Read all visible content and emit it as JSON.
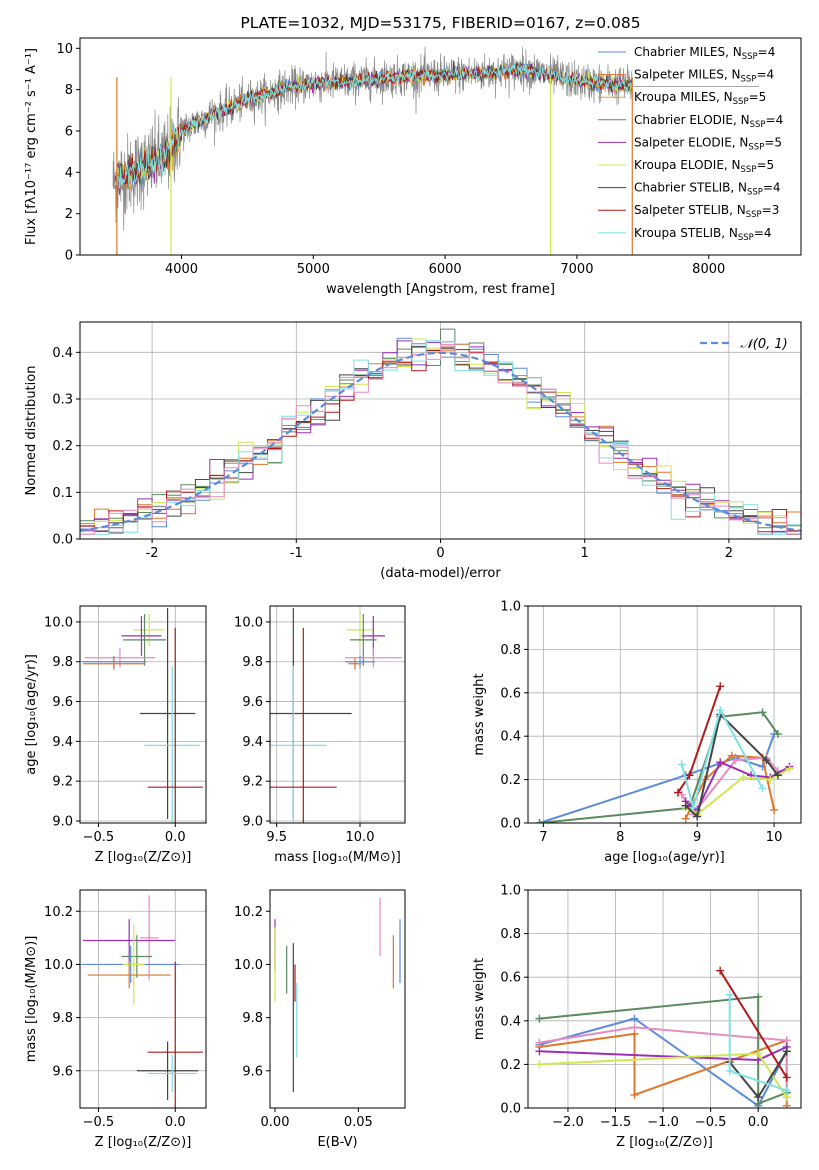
{
  "palette": [
    "#5b8bd9",
    "#e0762a",
    "#1f8c3a",
    "#9b2fb5",
    "#cfe84f",
    "#444444",
    "#b01b1b",
    "#7fe0e3",
    "#e58cc0",
    "#5a8a5f",
    "#888888"
  ],
  "chart_data": [
    {
      "id": "spectrum",
      "type": "line",
      "title": "PLATE=1032, MJD=53175, FIBERID=0167, z=0.085",
      "xlabel": "wavelength [Angstrom, rest frame]",
      "ylabel": "Flux [fλ10⁻¹⁷ erg cm⁻² s⁻¹ A⁻¹]",
      "xlim": [
        3230,
        8700
      ],
      "ylim": [
        0,
        10.5
      ],
      "xticks": [
        4000,
        5000,
        6000,
        7000,
        8000
      ],
      "yticks": [
        0,
        2,
        4,
        6,
        8,
        10
      ],
      "legend_position": "right",
      "data_color": "#888888",
      "data_label": "",
      "continuum_x": [
        3500,
        3700,
        3900,
        4000,
        4200,
        4500,
        4800,
        5000,
        5300,
        5600,
        6000,
        6300,
        6600,
        6800,
        7000,
        7200,
        7400
      ],
      "continuum_y": [
        3.6,
        4.2,
        4.9,
        6.0,
        6.7,
        7.5,
        8.1,
        8.3,
        8.4,
        8.6,
        8.7,
        8.8,
        9.0,
        8.7,
        8.4,
        8.3,
        8.2
      ],
      "model_x_range": [
        3500,
        7420
      ],
      "data_x_range": [
        3480,
        8380
      ],
      "series": [
        {
          "name": "Chabrier MILES, N_SSP=4",
          "label_main": "Chabrier MILES, N",
          "label_sub": "SSP",
          "label_end": "=4",
          "color": "#5b8bd9"
        },
        {
          "name": "Salpeter MILES, N_SSP=4",
          "label_main": "Salpeter MILES, N",
          "label_sub": "SSP",
          "label_end": "=4",
          "color": "#e0762a"
        },
        {
          "name": "Kroupa MILES, N_SSP=5",
          "label_main": "Kroupa MILES, N",
          "label_sub": "SSP",
          "label_end": "=5",
          "color": "#e0a040"
        },
        {
          "name": "Chabrier ELODIE, N_SSP=4",
          "label_main": "Chabrier ELODIE, N",
          "label_sub": "SSP",
          "label_end": "=4",
          "color": "#5a8a5f"
        },
        {
          "name": "Salpeter ELODIE, N_SSP=5",
          "label_main": "Salpeter ELODIE, N",
          "label_sub": "SSP",
          "label_end": "=5",
          "color": "#9b2fb5"
        },
        {
          "name": "Kroupa ELODIE, N_SSP=5",
          "label_main": "Kroupa ELODIE, N",
          "label_sub": "SSP",
          "label_end": "=5",
          "color": "#cfe84f"
        },
        {
          "name": "Chabrier STELIB, N_SSP=4",
          "label_main": "Chabrier STELIB, N",
          "label_sub": "SSP",
          "label_end": "=4",
          "color": "#444444"
        },
        {
          "name": "Salpeter STELIB, N_SSP=3",
          "label_main": "Salpeter STELIB, N",
          "label_sub": "SSP",
          "label_end": "=3",
          "color": "#b01b1b"
        },
        {
          "name": "Kroupa STELIB, N_SSP=4",
          "label_main": "Kroupa STELIB, N",
          "label_sub": "SSP",
          "label_end": "=4",
          "color": "#7fe0e3"
        }
      ],
      "vertical_lines": [
        {
          "x": 3920,
          "color": "#cfe84f"
        },
        {
          "x": 6800,
          "color": "#cfe84f"
        },
        {
          "x": 7420,
          "color": "#e0762a"
        },
        {
          "x": 3510,
          "color": "#e0762a"
        }
      ]
    },
    {
      "id": "residuals",
      "type": "histogram",
      "title": "",
      "xlabel": "(data-model)/error",
      "ylabel": "Normed distribution",
      "xlim": [
        -2.5,
        2.5
      ],
      "ylim": [
        0,
        0.465
      ],
      "xticks": [
        -2,
        -1,
        0,
        1,
        2
      ],
      "yticks": [
        0.0,
        0.1,
        0.2,
        0.3,
        0.4
      ],
      "grid": true,
      "bin_width": 0.1,
      "series_colors": [
        "#5b8bd9",
        "#e0762a",
        "#5a8a5f",
        "#9b2fb5",
        "#cfe84f",
        "#444444",
        "#b01b1b",
        "#7fe0e3",
        "#e58cc0"
      ],
      "normal_curve": {
        "label": "𝒩(0, 1)",
        "mean": 0,
        "sigma": 1,
        "color": "#5b8bd9",
        "style": "dashed"
      },
      "legend_position": "upper right"
    },
    {
      "id": "age-vs-z",
      "type": "errorbar",
      "xlabel": "Z [log₁₀(Z/Z⊙)]",
      "ylabel": "age  [log₁₀(age/yr)]",
      "xlim": [
        -0.62,
        0.2
      ],
      "ylim": [
        8.99,
        10.08
      ],
      "xticks": [
        -0.5,
        0.0
      ],
      "xticklabels": [
        "−0.5",
        "0.0"
      ],
      "yticks": [
        9.0,
        9.2,
        9.4,
        9.6,
        9.8,
        10.0
      ],
      "grid": true,
      "points": [
        {
          "x": -0.17,
          "y": 9.96,
          "xerr": 0.1,
          "yerr": 0.08,
          "color": "#cfe84f"
        },
        {
          "x": -0.22,
          "y": 9.93,
          "xerr": 0.13,
          "yerr": 0.1,
          "color": "#9b2fb5"
        },
        {
          "x": -0.2,
          "y": 9.91,
          "xerr": 0.14,
          "yerr": 0.13,
          "color": "#5a8a5f"
        },
        {
          "x": -0.36,
          "y": 9.82,
          "xerr": 0.23,
          "yerr": 0.05,
          "color": "#e58cc0"
        },
        {
          "x": -0.4,
          "y": 9.8,
          "xerr": 0.21,
          "yerr": 0.03,
          "color": "#5b8bd9"
        },
        {
          "x": -0.4,
          "y": 9.79,
          "xerr": 0.2,
          "yerr": 0.03,
          "color": "#e0762a"
        },
        {
          "x": -0.05,
          "y": 9.54,
          "xerr": 0.18,
          "yerr": 0.53,
          "color": "#444444"
        },
        {
          "x": -0.02,
          "y": 9.38,
          "xerr": 0.18,
          "yerr": 0.4,
          "color": "#7fe0e3"
        },
        {
          "x": 0.0,
          "y": 9.17,
          "xerr": 0.18,
          "yerr": 0.8,
          "color": "#b01b1b"
        }
      ]
    },
    {
      "id": "age-vs-mass",
      "type": "errorbar",
      "xlabel": "mass [log₁₀(M/M⊙)]",
      "ylabel": "",
      "xlim": [
        9.46,
        10.27
      ],
      "ylim": [
        8.99,
        10.08
      ],
      "xticks": [
        9.5,
        10.0
      ],
      "xticklabels": [
        "9.5",
        "10.0"
      ],
      "yticks": [
        9.0,
        9.2,
        9.4,
        9.6,
        9.8,
        10.0
      ],
      "grid": true,
      "points": [
        {
          "x": 10.0,
          "y": 9.96,
          "xerr": 0.08,
          "yerr": 0.08,
          "color": "#cfe84f"
        },
        {
          "x": 10.08,
          "y": 9.93,
          "xerr": 0.07,
          "yerr": 0.1,
          "color": "#9b2fb5"
        },
        {
          "x": 10.02,
          "y": 9.91,
          "xerr": 0.08,
          "yerr": 0.13,
          "color": "#5a8a5f"
        },
        {
          "x": 10.08,
          "y": 9.82,
          "xerr": 0.17,
          "yerr": 0.05,
          "color": "#e58cc0"
        },
        {
          "x": 10.0,
          "y": 9.8,
          "xerr": 0.09,
          "yerr": 0.03,
          "color": "#5b8bd9"
        },
        {
          "x": 9.97,
          "y": 9.79,
          "xerr": 0.04,
          "yerr": 0.03,
          "color": "#e0762a"
        },
        {
          "x": 9.6,
          "y": 9.54,
          "xerr": 0.35,
          "yerr": 0.53,
          "color": "#444444"
        },
        {
          "x": 9.6,
          "y": 9.38,
          "xerr": 0.2,
          "yerr": 0.4,
          "color": "#7fe0e3"
        },
        {
          "x": 9.66,
          "y": 9.17,
          "xerr": 0.2,
          "yerr": 0.8,
          "color": "#b01b1b"
        }
      ]
    },
    {
      "id": "mass-weight-vs-age",
      "type": "line",
      "xlabel": "age  [log₁₀(age/yr)]",
      "ylabel": "mass weight",
      "xlim": [
        6.8,
        10.35
      ],
      "ylim": [
        0,
        1.0
      ],
      "xticks": [
        7,
        8,
        9,
        10
      ],
      "yticks": [
        0.0,
        0.2,
        0.4,
        0.6,
        0.8,
        1.0
      ],
      "grid": true,
      "series": [
        {
          "color": "#5b8bd9",
          "x": [
            6.95,
            8.85,
            9.5,
            9.85,
            10.0
          ],
          "y": [
            0.0,
            0.22,
            0.3,
            0.26,
            0.41
          ]
        },
        {
          "color": "#e0762a",
          "x": [
            8.85,
            9.1,
            9.45,
            9.85,
            10.0
          ],
          "y": [
            0.02,
            0.2,
            0.31,
            0.3,
            0.06
          ]
        },
        {
          "color": "#e58cc0",
          "x": [
            8.8,
            8.95,
            9.5,
            9.9,
            10.05
          ],
          "y": [
            0.13,
            0.04,
            0.29,
            0.3,
            0.24
          ]
        },
        {
          "color": "#5a8a5f",
          "x": [
            6.95,
            8.9,
            9.3,
            9.85,
            10.05
          ],
          "y": [
            0.0,
            0.07,
            0.49,
            0.51,
            0.41
          ]
        },
        {
          "color": "#9b2fb5",
          "x": [
            8.85,
            9.0,
            9.3,
            9.7,
            9.95,
            10.2
          ],
          "y": [
            0.1,
            0.06,
            0.28,
            0.22,
            0.21,
            0.26
          ]
        },
        {
          "color": "#cfe84f",
          "x": [
            8.85,
            9.0,
            9.6,
            9.95,
            10.2
          ],
          "y": [
            0.07,
            0.04,
            0.21,
            0.2,
            0.25
          ]
        },
        {
          "color": "#444444",
          "x": [
            8.85,
            9.0,
            9.3,
            9.9,
            10.05
          ],
          "y": [
            0.08,
            0.03,
            0.5,
            0.29,
            0.22
          ]
        },
        {
          "color": "#b01b1b",
          "x": [
            8.75,
            8.9,
            9.3
          ],
          "y": [
            0.14,
            0.22,
            0.63
          ]
        },
        {
          "color": "#7fe0e3",
          "x": [
            8.8,
            8.95,
            9.3,
            9.85
          ],
          "y": [
            0.27,
            0.07,
            0.52,
            0.16
          ]
        }
      ]
    },
    {
      "id": "mass-vs-z",
      "type": "errorbar",
      "xlabel": "Z [log₁₀(Z/Z⊙)]",
      "ylabel": "mass [log₁₀(M/M⊙)]",
      "xlim": [
        -0.62,
        0.2
      ],
      "ylim": [
        9.46,
        10.28
      ],
      "xticks": [
        -0.5,
        0.0
      ],
      "xticklabels": [
        "−0.5",
        "0.0"
      ],
      "yticks": [
        9.6,
        9.8,
        10.0,
        10.2
      ],
      "grid": true,
      "points": [
        {
          "x": -0.17,
          "y": 10.1,
          "xerr": 0.06,
          "yerr": 0.16,
          "color": "#e58cc0"
        },
        {
          "x": -0.3,
          "y": 10.09,
          "xerr": 0.3,
          "yerr": 0.08,
          "color": "#9b2fb5"
        },
        {
          "x": -0.25,
          "y": 10.03,
          "xerr": 0.1,
          "yerr": 0.08,
          "color": "#5a8a5f"
        },
        {
          "x": -0.29,
          "y": 10.0,
          "xerr": 0.32,
          "yerr": 0.07,
          "color": "#5b8bd9"
        },
        {
          "x": -0.27,
          "y": 10.0,
          "xerr": 0.07,
          "yerr": 0.15,
          "color": "#cfe84f"
        },
        {
          "x": -0.3,
          "y": 9.96,
          "xerr": 0.27,
          "yerr": 0.05,
          "color": "#e0762a"
        },
        {
          "x": 0.0,
          "y": 9.67,
          "xerr": 0.18,
          "yerr": 0.34,
          "color": "#b01b1b"
        },
        {
          "x": -0.05,
          "y": 9.6,
          "xerr": 0.2,
          "yerr": 0.11,
          "color": "#444444"
        },
        {
          "x": -0.02,
          "y": 9.59,
          "xerr": 0.16,
          "yerr": 0.07,
          "color": "#7fe0e3"
        }
      ]
    },
    {
      "id": "mass-vs-ebv",
      "type": "errorbar",
      "xlabel": "E(B-V)",
      "ylabel": "",
      "xlim": [
        -0.003,
        0.078
      ],
      "ylim": [
        9.46,
        10.28
      ],
      "xticks": [
        0.0,
        0.05
      ],
      "xticklabels": [
        "0.00",
        "0.05"
      ],
      "yticks": [
        9.6,
        9.8,
        10.0,
        10.2
      ],
      "grid": false,
      "points": [
        {
          "x": 0.0,
          "y": 10.07,
          "xerr": 0.0,
          "yerr": 0.1,
          "color": "#9b2fb5"
        },
        {
          "x": 0.0,
          "y": 10.0,
          "xerr": 0.0,
          "yerr": 0.14,
          "color": "#cfe84f"
        },
        {
          "x": 0.007,
          "y": 9.98,
          "xerr": 0.0,
          "yerr": 0.09,
          "color": "#5a8a5f"
        },
        {
          "x": 0.012,
          "y": 9.93,
          "xerr": 0.0,
          "yerr": 0.07,
          "color": "#b01b1b"
        },
        {
          "x": 0.011,
          "y": 9.8,
          "xerr": 0.0,
          "yerr": 0.28,
          "color": "#444444"
        },
        {
          "x": 0.013,
          "y": 9.79,
          "xerr": 0.0,
          "yerr": 0.14,
          "color": "#7fe0e3"
        },
        {
          "x": 0.063,
          "y": 10.14,
          "xerr": 0.0,
          "yerr": 0.11,
          "color": "#e58cc0"
        },
        {
          "x": 0.071,
          "y": 10.01,
          "xerr": 0.0,
          "yerr": 0.1,
          "color": "#e0762a"
        },
        {
          "x": 0.075,
          "y": 10.05,
          "xerr": 0.0,
          "yerr": 0.12,
          "color": "#5b8bd9"
        }
      ]
    },
    {
      "id": "mass-weight-vs-z",
      "type": "line",
      "xlabel": "Z [log₁₀(Z/Z⊙)]",
      "ylabel": "mass weight",
      "xlim": [
        -2.42,
        0.45
      ],
      "ylim": [
        0,
        1.0
      ],
      "xticks": [
        -2.0,
        -1.5,
        -1.0,
        -0.5,
        0.0
      ],
      "xticklabels": [
        "−2.0",
        "−1.5",
        "−1.0",
        "−0.5",
        "0.0"
      ],
      "yticks": [
        0.0,
        0.2,
        0.4,
        0.6,
        0.8,
        1.0
      ],
      "grid": true,
      "series": [
        {
          "color": "#5b8bd9",
          "x": [
            -2.3,
            -1.3,
            0.0,
            0.3
          ],
          "y": [
            0.29,
            0.41,
            0.01,
            0.26
          ]
        },
        {
          "color": "#e0762a",
          "x": [
            -2.3,
            -1.3,
            -1.3,
            0.3,
            0.3
          ],
          "y": [
            0.28,
            0.34,
            0.06,
            0.31,
            0.01
          ]
        },
        {
          "color": "#e58cc0",
          "x": [
            -2.3,
            -1.3,
            0.3,
            0.3
          ],
          "y": [
            0.3,
            0.37,
            0.31,
            0.05
          ]
        },
        {
          "color": "#5a8a5f",
          "x": [
            -2.3,
            0.0,
            0.0,
            0.3
          ],
          "y": [
            0.41,
            0.51,
            0.02,
            0.07
          ]
        },
        {
          "color": "#9b2fb5",
          "x": [
            -2.3,
            0.0,
            0.3
          ],
          "y": [
            0.26,
            0.22,
            0.28
          ]
        },
        {
          "color": "#cfe84f",
          "x": [
            -2.3,
            0.0,
            0.3
          ],
          "y": [
            0.2,
            0.25,
            0.05
          ]
        },
        {
          "color": "#444444",
          "x": [
            -0.3,
            0.0,
            0.3
          ],
          "y": [
            0.21,
            0.05,
            0.26
          ]
        },
        {
          "color": "#b01b1b",
          "x": [
            -0.4,
            0.3
          ],
          "y": [
            0.63,
            0.14
          ]
        },
        {
          "color": "#7fe0e3",
          "x": [
            -0.3,
            -0.3,
            0.3
          ],
          "y": [
            0.52,
            0.17,
            0.08
          ]
        }
      ]
    }
  ]
}
